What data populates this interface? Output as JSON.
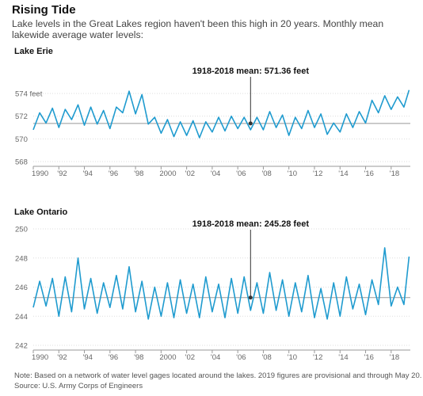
{
  "title": "Rising Tide",
  "subtitle": "Lake levels in the Great Lakes region haven't been this high in 20 years. Monthly mean lakewide average water levels:",
  "footnote": "Note: Based on a network of water level gages located around the lakes. 2019 figures are provisional and through May 20.",
  "source": "Source: U.S. Army Corps of Engineers",
  "colors": {
    "series": "#1f9bcf",
    "mean_line": "#999999",
    "grid": "#dddddd",
    "axis": "#999999"
  },
  "chart_data": [
    {
      "type": "line",
      "title": "Lake Erie",
      "unit": "feet",
      "xlim": [
        1990,
        2019.5
      ],
      "ylim": [
        568,
        574
      ],
      "yticks": [
        568,
        570,
        572,
        574
      ],
      "ytick_labels": [
        "568",
        "570",
        "572",
        "574 feet"
      ],
      "xticks": [
        1990,
        1992,
        1994,
        1996,
        1998,
        2000,
        2002,
        2004,
        2006,
        2008,
        2010,
        2012,
        2014,
        2016,
        2018
      ],
      "xtick_labels": [
        "1990",
        "'92",
        "'94",
        "'96",
        "'98",
        "2000",
        "'02",
        "'04",
        "'06",
        "'08",
        "'10",
        "'12",
        "'14",
        "'16",
        "'18"
      ],
      "mean": 571.36,
      "mean_label": "1918-2018 mean: 571.36 feet",
      "mean_marker_year": 2007,
      "series": [
        {
          "years": [
            1990,
            1990.5,
            1991,
            1991.5,
            1992,
            1992.5,
            1993,
            1993.5,
            1994,
            1994.5,
            1995,
            1995.5,
            1996,
            1996.5,
            1997,
            1997.5,
            1998,
            1998.5,
            1999,
            1999.5,
            2000,
            2000.5,
            2001,
            2001.5,
            2002,
            2002.5,
            2003,
            2003.5,
            2004,
            2004.5,
            2005,
            2005.5,
            2006,
            2006.5,
            2007,
            2007.5,
            2008,
            2008.5,
            2009,
            2009.5,
            2010,
            2010.5,
            2011,
            2011.5,
            2012,
            2012.5,
            2013,
            2013.5,
            2014,
            2014.5,
            2015,
            2015.5,
            2016,
            2016.5,
            2017,
            2017.5,
            2018,
            2018.5,
            2019,
            2019.4
          ],
          "values": [
            570.8,
            572.3,
            571.4,
            572.7,
            571.0,
            572.6,
            571.7,
            573.0,
            571.2,
            572.8,
            571.3,
            572.5,
            570.9,
            572.8,
            572.3,
            574.2,
            572.2,
            573.9,
            571.3,
            571.9,
            570.5,
            571.7,
            570.2,
            571.5,
            570.3,
            571.6,
            570.1,
            571.5,
            570.6,
            571.9,
            570.7,
            572.0,
            570.9,
            571.9,
            570.8,
            571.9,
            570.8,
            572.4,
            571.0,
            572.1,
            570.3,
            571.9,
            570.9,
            572.5,
            571.0,
            572.2,
            570.4,
            571.4,
            570.6,
            572.2,
            571.0,
            572.4,
            571.4,
            573.4,
            572.3,
            573.8,
            572.6,
            573.7,
            572.8,
            574.3
          ]
        }
      ]
    },
    {
      "type": "line",
      "title": "Lake Ontario",
      "unit": "feet",
      "xlim": [
        1990,
        2019.5
      ],
      "ylim": [
        242,
        250
      ],
      "yticks": [
        242,
        244,
        246,
        248,
        250
      ],
      "ytick_labels": [
        "242",
        "244",
        "246",
        "248",
        "250"
      ],
      "xticks": [
        1990,
        1992,
        1994,
        1996,
        1998,
        2000,
        2002,
        2004,
        2006,
        2008,
        2010,
        2012,
        2014,
        2016,
        2018
      ],
      "xtick_labels": [
        "1990",
        "'92",
        "'94",
        "'96",
        "'98",
        "2000",
        "'02",
        "'04",
        "'06",
        "'08",
        "'10",
        "'12",
        "'14",
        "'16",
        "'18"
      ],
      "mean": 245.28,
      "mean_label": "1918-2018 mean: 245.28 feet",
      "mean_marker_year": 2007,
      "series": [
        {
          "years": [
            1990,
            1990.5,
            1991,
            1991.5,
            1992,
            1992.5,
            1993,
            1993.5,
            1994,
            1994.5,
            1995,
            1995.5,
            1996,
            1996.5,
            1997,
            1997.5,
            1998,
            1998.5,
            1999,
            1999.5,
            2000,
            2000.5,
            2001,
            2001.5,
            2002,
            2002.5,
            2003,
            2003.5,
            2004,
            2004.5,
            2005,
            2005.5,
            2006,
            2006.5,
            2007,
            2007.5,
            2008,
            2008.5,
            2009,
            2009.5,
            2010,
            2010.5,
            2011,
            2011.5,
            2012,
            2012.5,
            2013,
            2013.5,
            2014,
            2014.5,
            2015,
            2015.5,
            2016,
            2016.5,
            2017,
            2017.5,
            2018,
            2018.5,
            2019,
            2019.4
          ],
          "values": [
            244.6,
            246.4,
            244.7,
            246.6,
            244.0,
            246.7,
            244.3,
            248.0,
            244.5,
            246.6,
            244.2,
            246.3,
            244.6,
            246.8,
            244.5,
            247.4,
            244.3,
            246.4,
            243.8,
            246.0,
            244.0,
            246.3,
            243.9,
            246.5,
            244.2,
            246.2,
            243.9,
            246.7,
            244.3,
            246.2,
            243.9,
            246.6,
            244.2,
            246.7,
            244.4,
            246.3,
            244.2,
            247.0,
            244.4,
            246.5,
            244.0,
            246.3,
            244.3,
            246.8,
            243.9,
            245.9,
            243.8,
            246.3,
            244.0,
            246.7,
            244.5,
            246.2,
            244.1,
            246.5,
            244.8,
            248.7,
            244.7,
            246.0,
            244.8,
            248.1
          ]
        }
      ]
    }
  ]
}
